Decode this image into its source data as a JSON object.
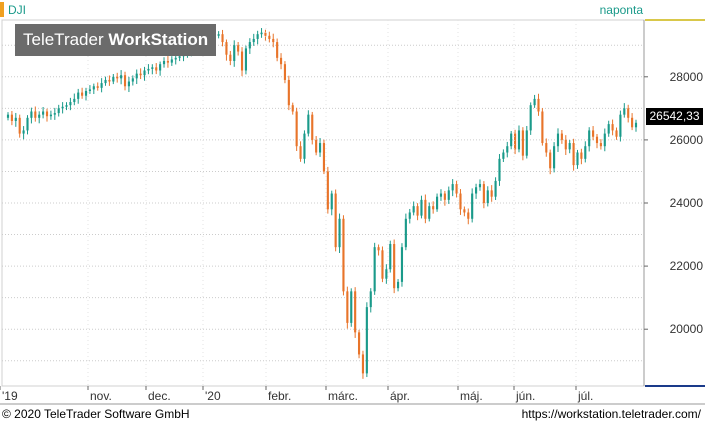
{
  "header": {
    "symbol": "DJI",
    "interval": "naponta"
  },
  "watermark": {
    "brand": "TeleTrader",
    "product": "WorkStation"
  },
  "footer": {
    "copyright": "© 2020 TeleTrader Software GmbH",
    "url": "https://workstation.teletrader.com/"
  },
  "colors": {
    "up": "#1a9a8a",
    "down": "#e8742a",
    "grid": "#cccccc",
    "last_price_bg": "#000000",
    "axis_accent_top": "#d9c84a",
    "axis_accent_bottom": "#1a3a8a"
  },
  "chart_data": {
    "type": "candlestick",
    "symbol": "DJI",
    "last_price_label": "26542,33",
    "ylim": [
      18200,
      29800
    ],
    "yticks": [
      20000,
      22000,
      24000,
      26000,
      28000
    ],
    "ytick_labels": [
      "20000",
      "22000",
      "24000",
      "26000",
      "28000"
    ],
    "xtick_labels": [
      "'19",
      "nov.",
      "dec.",
      "'20",
      "febr.",
      "márc.",
      "ápr.",
      "máj.",
      "jún.",
      "júl."
    ],
    "grid": true,
    "closes": [
      26800,
      26600,
      26700,
      26200,
      26300,
      26700,
      26900,
      26700,
      26800,
      26900,
      26750,
      26800,
      26850,
      27000,
      27050,
      27100,
      27200,
      27300,
      27500,
      27400,
      27550,
      27600,
      27700,
      27650,
      27800,
      27900,
      27850,
      28000,
      27950,
      28050,
      27700,
      27850,
      27950,
      28100,
      28050,
      28200,
      28250,
      28300,
      28200,
      28400,
      28500,
      28450,
      28550,
      28600,
      28650,
      28700,
      28800,
      28900,
      28950,
      29100,
      29000,
      29200,
      29150,
      29300,
      29350,
      29100,
      28700,
      28500,
      29000,
      28800,
      28200,
      28900,
      29100,
      29200,
      29350,
      29400,
      29300,
      29200,
      29100,
      28600,
      28400,
      27900,
      27100,
      26900,
      25800,
      25400,
      26200,
      26800,
      26000,
      25600,
      25900,
      25000,
      23800,
      24300,
      22600,
      23500,
      21200,
      20200,
      21200,
      19900,
      19200,
      18600,
      20700,
      21200,
      22600,
      22500,
      21600,
      21900,
      22700,
      21300,
      21500,
      22600,
      23500,
      23700,
      23900,
      23600,
      24100,
      23500,
      23900,
      23800,
      24200,
      24300,
      24100,
      24400,
      24600,
      24300,
      23800,
      23700,
      23500,
      24300,
      24500,
      24600,
      24000,
      24400,
      24200,
      24700,
      25400,
      25600,
      25800,
      26200,
      25700,
      26300,
      25500,
      26300,
      27100,
      27300,
      26900,
      25900,
      25600,
      25100,
      25800,
      26200,
      26000,
      25700,
      25900,
      25200,
      25600,
      25400,
      25800,
      26300,
      26100,
      25900,
      25800,
      26200,
      26500,
      26300,
      26100,
      26800,
      27000,
      26700,
      26400,
      26542
    ]
  }
}
